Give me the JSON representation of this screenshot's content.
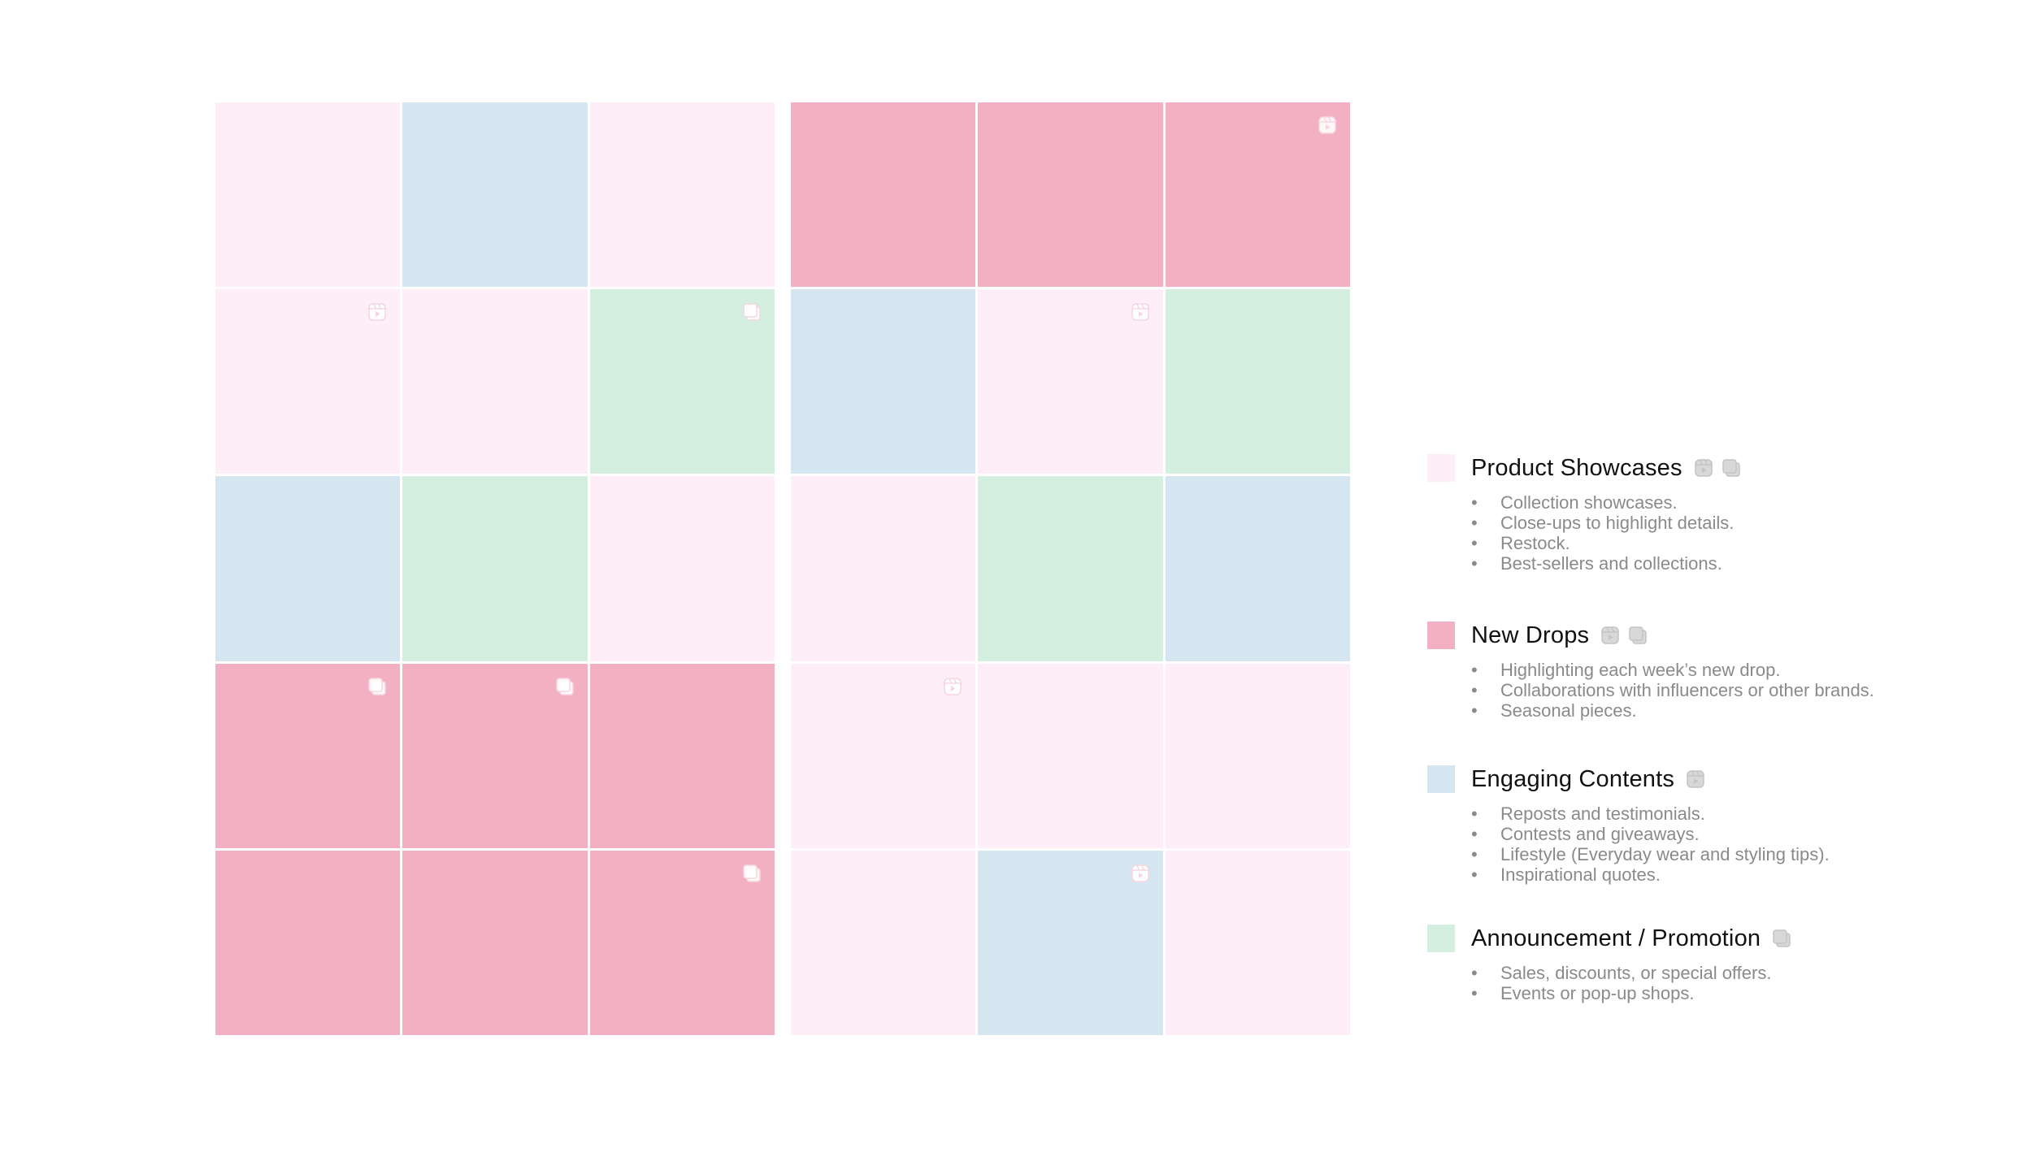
{
  "colors": {
    "product": "#fdeef8",
    "drop": "#f3b0c2",
    "engage": "#d6e6f0",
    "promo": "#d4efdf"
  },
  "grids": [
    {
      "cells": [
        {
          "type": "product",
          "icon": ""
        },
        {
          "type": "engage",
          "icon": ""
        },
        {
          "type": "product",
          "icon": ""
        },
        {
          "type": "product",
          "icon": "reel-icon"
        },
        {
          "type": "product",
          "icon": ""
        },
        {
          "type": "promo",
          "icon": "carousel-icon"
        },
        {
          "type": "engage",
          "icon": ""
        },
        {
          "type": "promo",
          "icon": ""
        },
        {
          "type": "product",
          "icon": ""
        },
        {
          "type": "drop",
          "icon": "carousel-icon"
        },
        {
          "type": "drop",
          "icon": "carousel-icon"
        },
        {
          "type": "drop",
          "icon": ""
        },
        {
          "type": "drop",
          "icon": ""
        },
        {
          "type": "drop",
          "icon": ""
        },
        {
          "type": "drop",
          "icon": "carousel-icon"
        }
      ]
    },
    {
      "cells": [
        {
          "type": "drop",
          "icon": ""
        },
        {
          "type": "drop",
          "icon": ""
        },
        {
          "type": "drop",
          "icon": "reel-icon"
        },
        {
          "type": "engage",
          "icon": ""
        },
        {
          "type": "product",
          "icon": "reel-icon"
        },
        {
          "type": "promo",
          "icon": ""
        },
        {
          "type": "product",
          "icon": ""
        },
        {
          "type": "promo",
          "icon": ""
        },
        {
          "type": "engage",
          "icon": ""
        },
        {
          "type": "product",
          "icon": "reel-icon"
        },
        {
          "type": "product",
          "icon": ""
        },
        {
          "type": "product",
          "icon": ""
        },
        {
          "type": "product",
          "icon": ""
        },
        {
          "type": "engage",
          "icon": "reel-icon"
        },
        {
          "type": "product",
          "icon": ""
        }
      ]
    }
  ],
  "legend": [
    {
      "type": "product",
      "title": "Product Showcases",
      "icons": [
        "reel-icon",
        "carousel-icon"
      ],
      "bullets": [
        "Collection showcases.",
        "Close-ups to highlight details.",
        "Restock.",
        "Best-sellers and collections."
      ]
    },
    {
      "type": "drop",
      "title": "New Drops",
      "icons": [
        "reel-icon",
        "carousel-icon"
      ],
      "bullets": [
        "Highlighting each week’s new drop.",
        "Collaborations with influencers or other brands.",
        "Seasonal pieces."
      ]
    },
    {
      "type": "engage",
      "title": "Engaging Contents",
      "icons": [
        "reel-icon"
      ],
      "bullets": [
        "Reposts and testimonials.",
        "Contests and giveaways.",
        "Lifestyle (Everyday wear and styling tips).",
        "Inspirational quotes."
      ]
    },
    {
      "type": "promo",
      "title": "Announcement / Promotion",
      "icons": [
        "carousel-icon"
      ],
      "bullets": [
        "Sales, discounts, or special offers.",
        "Events or pop-up shops."
      ]
    }
  ]
}
